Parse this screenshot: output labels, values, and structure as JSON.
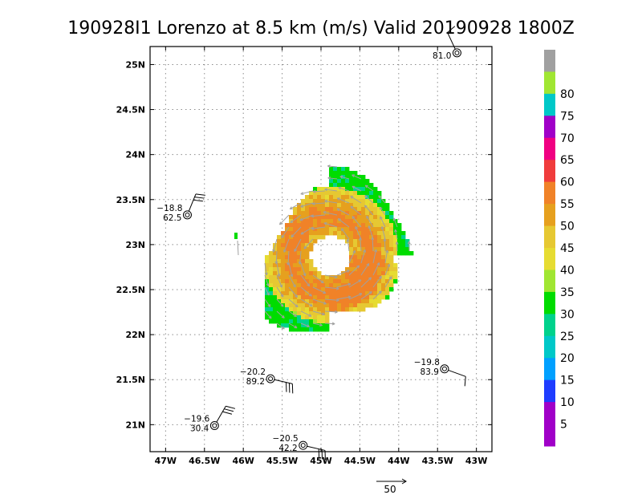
{
  "chart_data": {
    "type": "scatter",
    "title": "190928I1 Lorenzo at 8.5 km (m/s) Valid 20190928 1800Z",
    "xlim": [
      -47.2,
      -42.8
    ],
    "ylim": [
      20.7,
      25.2
    ],
    "x_ticks": [
      {
        "value": -47,
        "label": "47W"
      },
      {
        "value": -46.5,
        "label": "46.5W"
      },
      {
        "value": -46,
        "label": "46W"
      },
      {
        "value": -45.5,
        "label": "45.5W"
      },
      {
        "value": -45,
        "label": "45W"
      },
      {
        "value": -44.5,
        "label": "44.5W"
      },
      {
        "value": -44,
        "label": "44W"
      },
      {
        "value": -43.5,
        "label": "43.5W"
      },
      {
        "value": -43,
        "label": "43W"
      }
    ],
    "y_ticks": [
      {
        "value": 21,
        "label": "21N"
      },
      {
        "value": 21.5,
        "label": "21.5N"
      },
      {
        "value": 22,
        "label": "22N"
      },
      {
        "value": 22.5,
        "label": "22.5N"
      },
      {
        "value": 23,
        "label": "23N"
      },
      {
        "value": 23.5,
        "label": "23.5N"
      },
      {
        "value": 24,
        "label": "24N"
      },
      {
        "value": 24.5,
        "label": "24.5N"
      },
      {
        "value": 25,
        "label": "25N"
      }
    ],
    "grid": true,
    "center": {
      "lon": -44.9,
      "lat": 22.9
    },
    "colorbar": {
      "placement": "right",
      "levels": [
        {
          "label": "",
          "color": "#a0a0a0"
        },
        {
          "label": "80",
          "color": "#a0e632"
        },
        {
          "label": "75",
          "color": "#00c8c8"
        },
        {
          "label": "70",
          "color": "#a000c8"
        },
        {
          "label": "65",
          "color": "#f00082"
        },
        {
          "label": "60",
          "color": "#f03c3c"
        },
        {
          "label": "55",
          "color": "#f08228"
        },
        {
          "label": "50",
          "color": "#e6a01e"
        },
        {
          "label": "45",
          "color": "#e6c832"
        },
        {
          "label": "40",
          "color": "#e6dc32"
        },
        {
          "label": "35",
          "color": "#a0e632"
        },
        {
          "label": "30",
          "color": "#00dc00"
        },
        {
          "label": "25",
          "color": "#00d28c"
        },
        {
          "label": "20",
          "color": "#00c8c8"
        },
        {
          "label": "15",
          "color": "#00a0ff"
        },
        {
          "label": "10",
          "color": "#1e3cff"
        },
        {
          "label": "5",
          "color": "#a000c8"
        },
        {
          "label": "",
          "color": "#a000c8"
        }
      ]
    },
    "stations": [
      {
        "lon": -43.25,
        "lat": 25.13,
        "top": "",
        "bottom": "81.0",
        "barb_dir": -25,
        "barbs": 1
      },
      {
        "lon": -46.72,
        "lat": 23.33,
        "top": "−18.8",
        "bottom": "62.5",
        "barb_dir": 22,
        "barbs": 3
      },
      {
        "lon": -45.65,
        "lat": 21.51,
        "top": "−20.2",
        "bottom": "89.2",
        "barb_dir": 103,
        "barbs": 3
      },
      {
        "lon": -46.37,
        "lat": 20.99,
        "top": "−19.6",
        "bottom": "30.4",
        "barb_dir": 30,
        "barbs": 3
      },
      {
        "lon": -45.23,
        "lat": 20.77,
        "top": "−20.5",
        "bottom": "42.2",
        "barb_dir": 103,
        "barbs": 3
      },
      {
        "lon": -43.41,
        "lat": 21.62,
        "top": "−19.8",
        "bottom": "83.9",
        "barb_dir": 110,
        "barbs": 1
      }
    ],
    "reference_vector": {
      "label": "50"
    }
  }
}
